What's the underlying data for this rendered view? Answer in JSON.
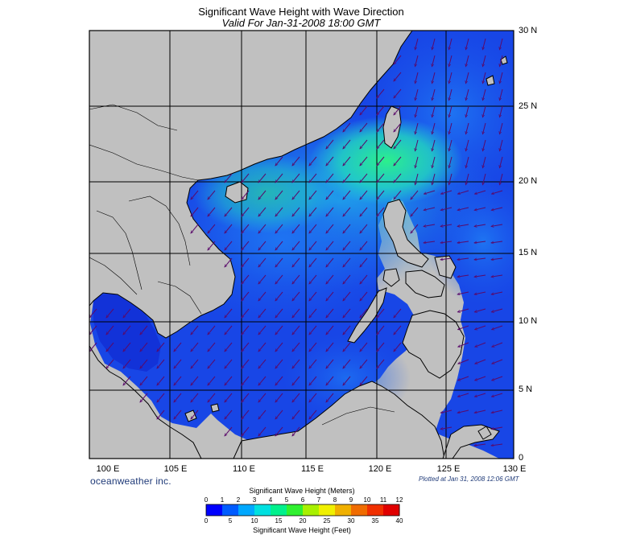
{
  "header": {
    "title": "Significant Wave Height with Wave Direction",
    "subtitle": "Valid For Jan-31-2008 18:00 GMT"
  },
  "map": {
    "lat_labels": [
      "30 N",
      "25 N",
      "20 N",
      "15 N",
      "10 N",
      "5 N",
      "0"
    ],
    "lon_labels": [
      "100 E",
      "105 E",
      "110 E",
      "115 E",
      "120 E",
      "125 E",
      "130 E"
    ],
    "land_color": "#c0c0c0",
    "sea_colors": {
      "calm": "#1238e8",
      "moderate": "#1f7cf0",
      "high": "#22d8d8",
      "peak": "#2cf08c",
      "deep_calm": "#0a10b8"
    },
    "arrow_color": "#5a0a6a",
    "dominant_direction": "from northeast"
  },
  "footer": {
    "brand": "oceanweather inc.",
    "plotted": "Plotted at Jan 31, 2008 12:06 GMT"
  },
  "legend": {
    "meters_title": "Significant Wave Height (Meters)",
    "feet_title": "Significant Wave Height (Feet)",
    "meters_ticks": [
      "0",
      "1",
      "2",
      "3",
      "4",
      "5",
      "6",
      "7",
      "8",
      "9",
      "10",
      "11",
      "12"
    ],
    "feet_ticks": [
      "0",
      "5",
      "10",
      "15",
      "20",
      "25",
      "30",
      "35",
      "40"
    ],
    "colors": [
      "#0000ff",
      "#005cff",
      "#00a8ff",
      "#00e0e0",
      "#00f08c",
      "#30f030",
      "#a8f000",
      "#f0f000",
      "#f0b000",
      "#f06c00",
      "#f03000",
      "#e00000"
    ]
  }
}
